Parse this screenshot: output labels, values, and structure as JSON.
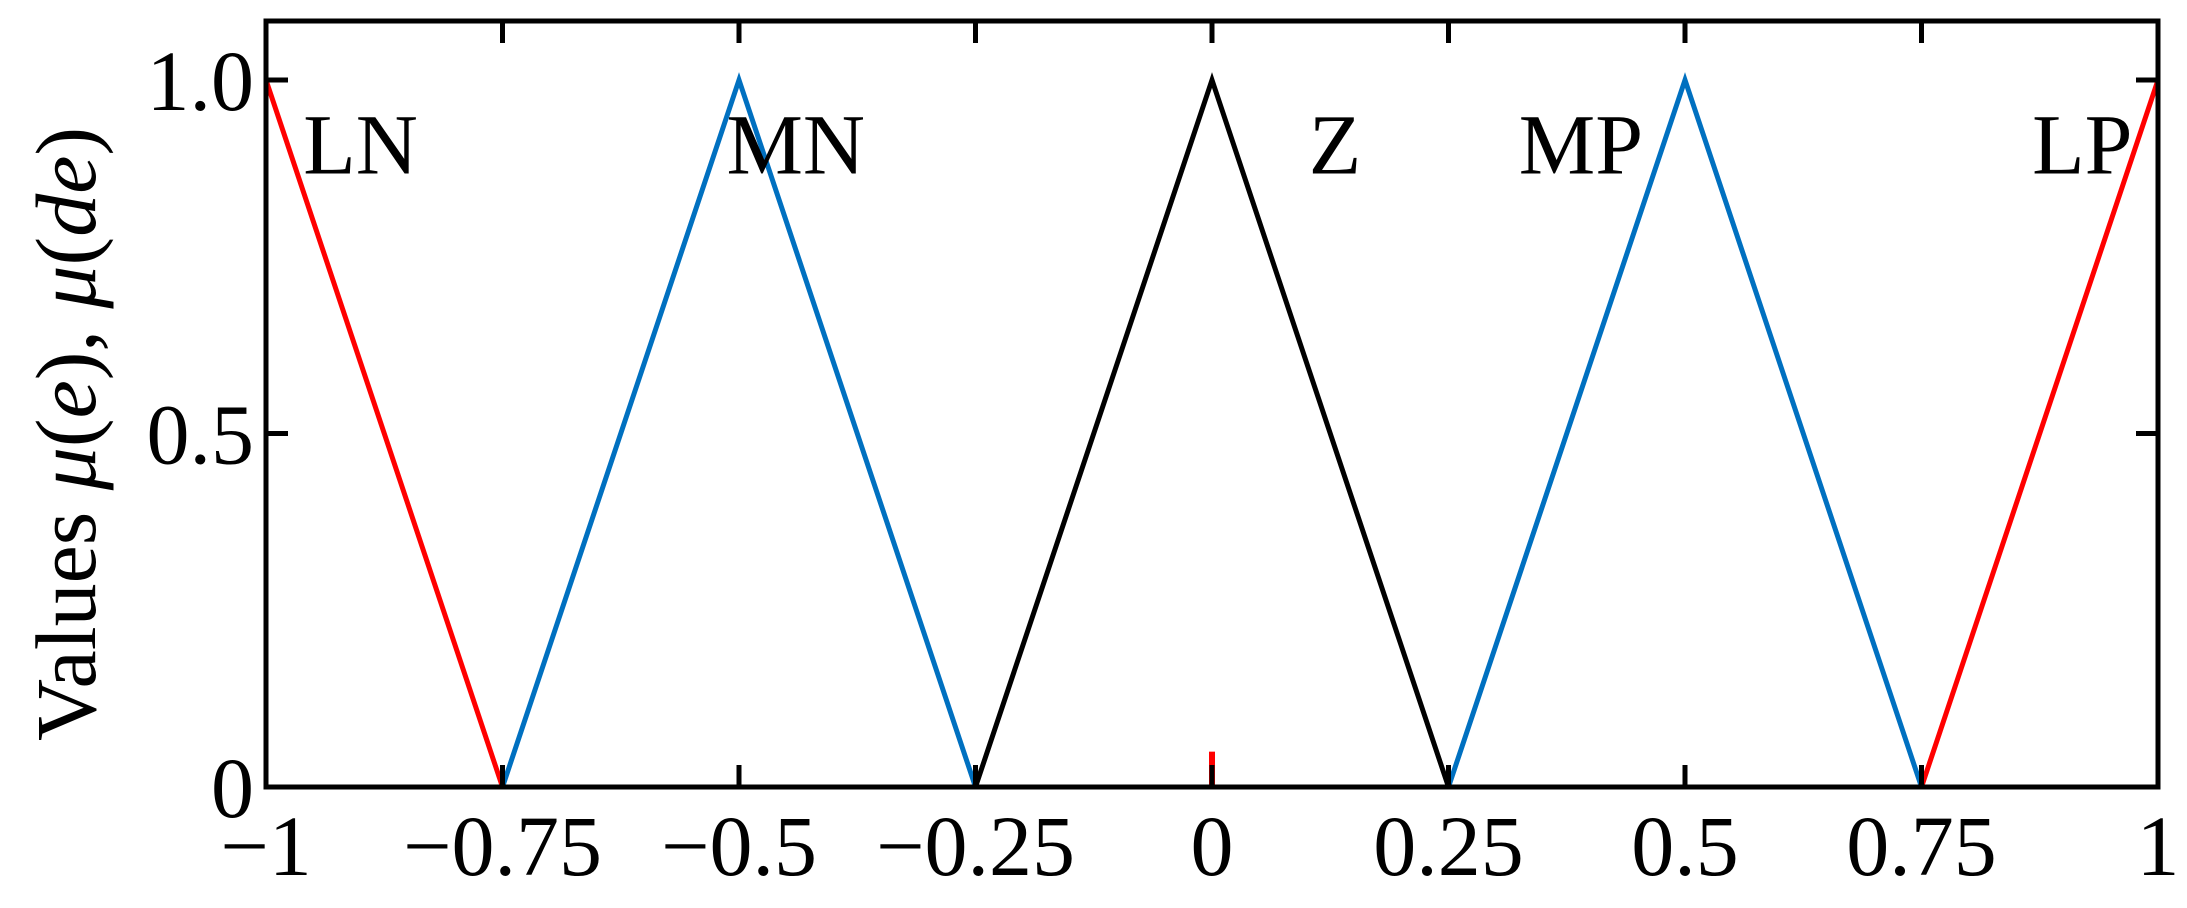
{
  "chart_data": {
    "type": "line",
    "title": "",
    "xlabel": "",
    "ylabel": {
      "prefix": "Values ",
      "mu1": "μ",
      "arg1": "e",
      "sep": ", ",
      "mu2": "μ",
      "arg2": "de"
    },
    "xlim": [
      -1,
      1
    ],
    "ylim": [
      0,
      1.0
    ],
    "x_ticks": [
      {
        "value": -1,
        "label": "−1"
      },
      {
        "value": -0.75,
        "label": "−0.75"
      },
      {
        "value": -0.5,
        "label": "−0.5"
      },
      {
        "value": -0.25,
        "label": "−0.25"
      },
      {
        "value": 0,
        "label": "0"
      },
      {
        "value": 0.25,
        "label": "0.25"
      },
      {
        "value": 0.5,
        "label": "0.5"
      },
      {
        "value": 0.75,
        "label": "0.75"
      },
      {
        "value": 1,
        "label": "1"
      }
    ],
    "y_ticks": [
      {
        "value": 0,
        "label": "0"
      },
      {
        "value": 0.5,
        "label": "0.5"
      },
      {
        "value": 1.0,
        "label": "1.0"
      }
    ],
    "grid": false,
    "series": [
      {
        "name": "LN",
        "color": "#ff0000",
        "x": [
          -1,
          -0.75
        ],
        "y": [
          1,
          0
        ],
        "label_at": [
          -0.9,
          0.91
        ]
      },
      {
        "name": "MN",
        "color": "#0070c0",
        "x": [
          -0.75,
          -0.5,
          -0.25
        ],
        "y": [
          0,
          1,
          0
        ],
        "label_at": [
          -0.44,
          0.91
        ]
      },
      {
        "name": "Z",
        "color": "#000000",
        "x": [
          -0.25,
          0,
          0.25
        ],
        "y": [
          0,
          1,
          0
        ],
        "label_at": [
          0.13,
          0.91
        ]
      },
      {
        "name": "MP",
        "color": "#0070c0",
        "x": [
          0.25,
          0.5,
          0.75
        ],
        "y": [
          0,
          1,
          0
        ],
        "label_at": [
          0.39,
          0.91
        ]
      },
      {
        "name": "LP",
        "color": "#ff0000",
        "x": [
          0.75,
          1
        ],
        "y": [
          0,
          1
        ],
        "label_at": [
          0.92,
          0.91
        ]
      }
    ],
    "marker": {
      "x": 0,
      "y": [
        0,
        0.05
      ],
      "color": "#ff0000"
    }
  }
}
